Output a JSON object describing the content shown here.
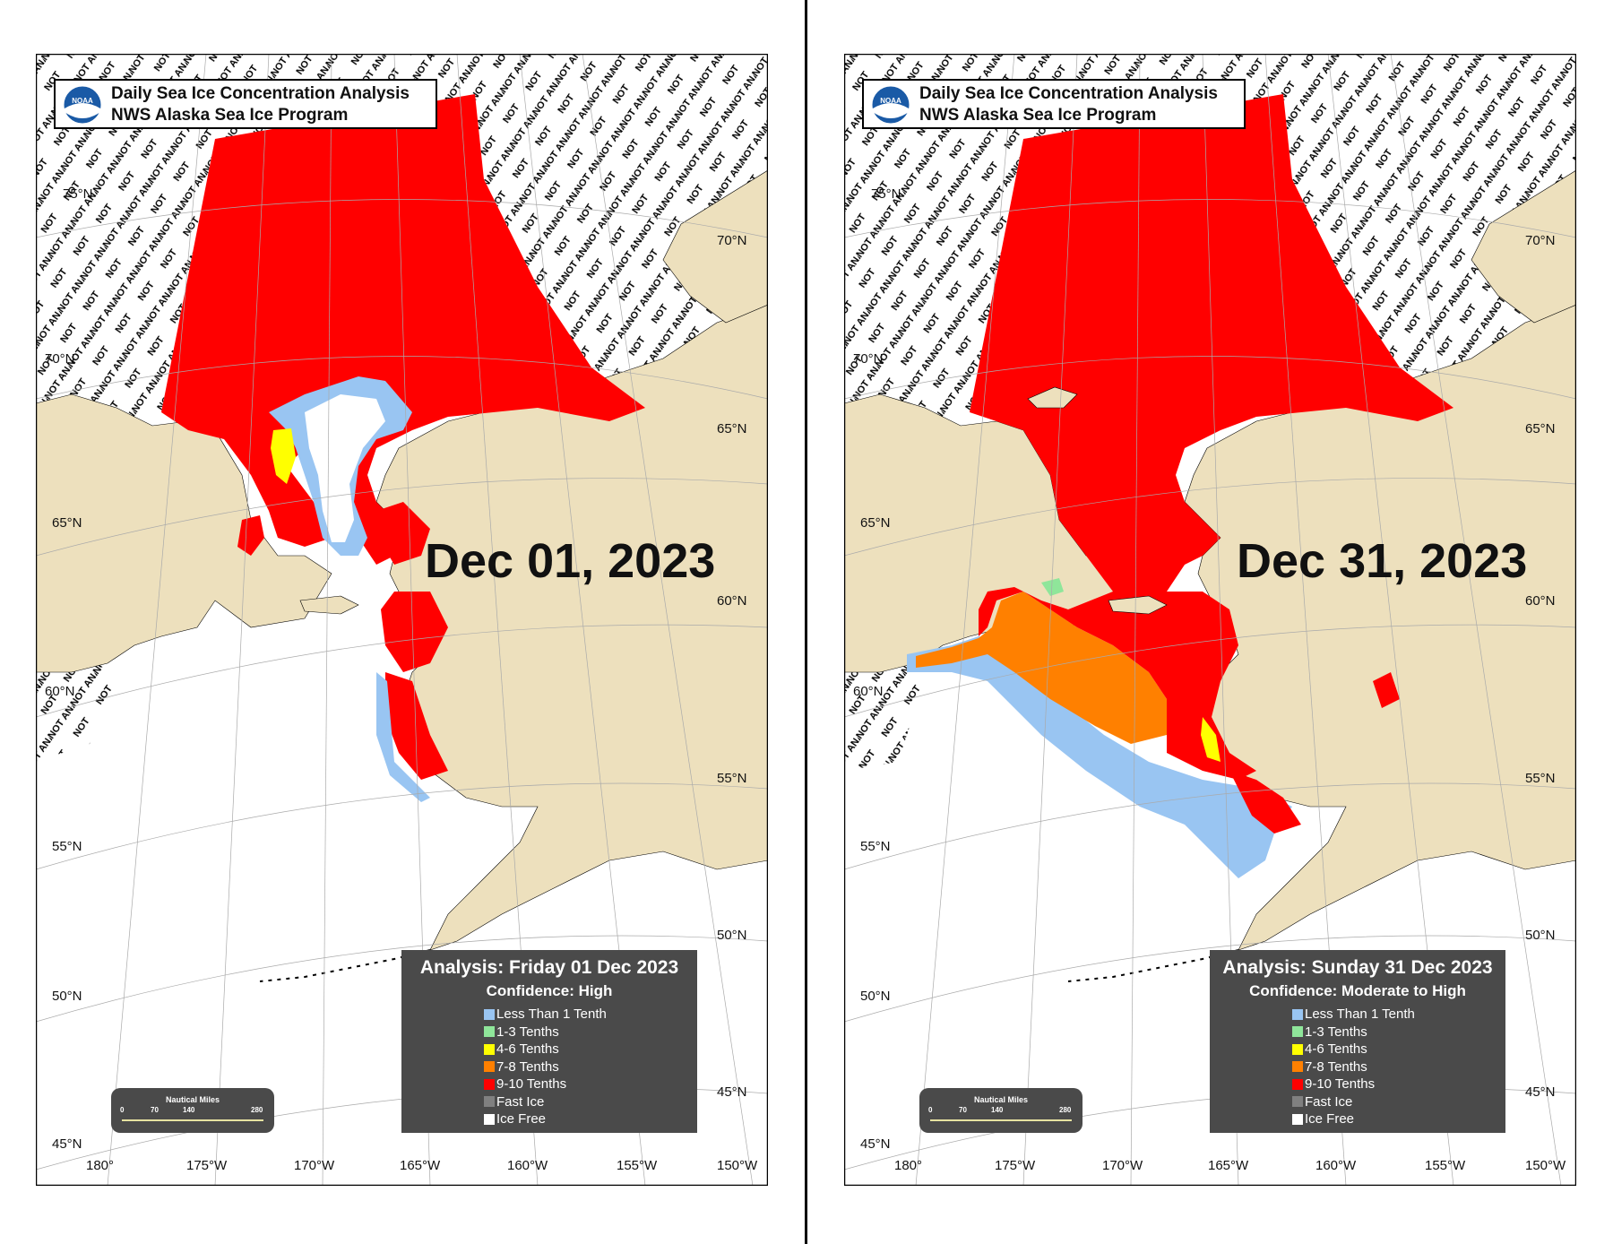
{
  "panels": [
    {
      "header_title": "Daily Sea Ice Concentration Analysis",
      "header_sub": "NWS Alaska Sea Ice Program",
      "date": "Dec 01, 2023",
      "analysis": "Analysis: Friday 01 Dec 2023",
      "confidence": "Confidence: High"
    },
    {
      "header_title": "Daily Sea Ice Concentration Analysis",
      "header_sub": "NWS Alaska Sea Ice Program",
      "date": "Dec 31, 2023",
      "analysis": "Analysis: Sunday 31 Dec 2023",
      "confidence": "Confidence: Moderate to High"
    }
  ],
  "logo_text": "NOAA",
  "not_analyzed_text": "NOT ANALYZED",
  "legend": [
    {
      "label": "Less Than 1 Tenth",
      "color": "#99c5f2"
    },
    {
      "label": "1-3 Tenths",
      "color": "#8fe69a"
    },
    {
      "label": "4-6 Tenths",
      "color": "#ffff00"
    },
    {
      "label": "7-8 Tenths",
      "color": "#ff8000"
    },
    {
      "label": "9-10 Tenths",
      "color": "#ff0000"
    },
    {
      "label": "Fast Ice",
      "color": "#808080"
    },
    {
      "label": "Ice Free",
      "color": "#ffffff"
    }
  ],
  "scale": {
    "title": "Nautical Miles",
    "ticks": [
      "0",
      "70",
      "140",
      "280"
    ]
  },
  "lat_labels": {
    "75": "75°N",
    "70": "70°N",
    "65": "65°N",
    "60": "60°N",
    "55": "55°N",
    "50": "50°N",
    "45": "45°N"
  },
  "lon_labels": [
    "180°",
    "175°W",
    "170°W",
    "165°W",
    "160°W",
    "155°W",
    "150°W"
  ],
  "colors": {
    "land": "#ede0bd",
    "water": "#ffffff",
    "ice_9_10": "#ff0000",
    "ice_7_8": "#ff8000",
    "ice_4_6": "#ffff00",
    "ice_lt1": "#99c5f2",
    "fast_ice": "#808080"
  }
}
